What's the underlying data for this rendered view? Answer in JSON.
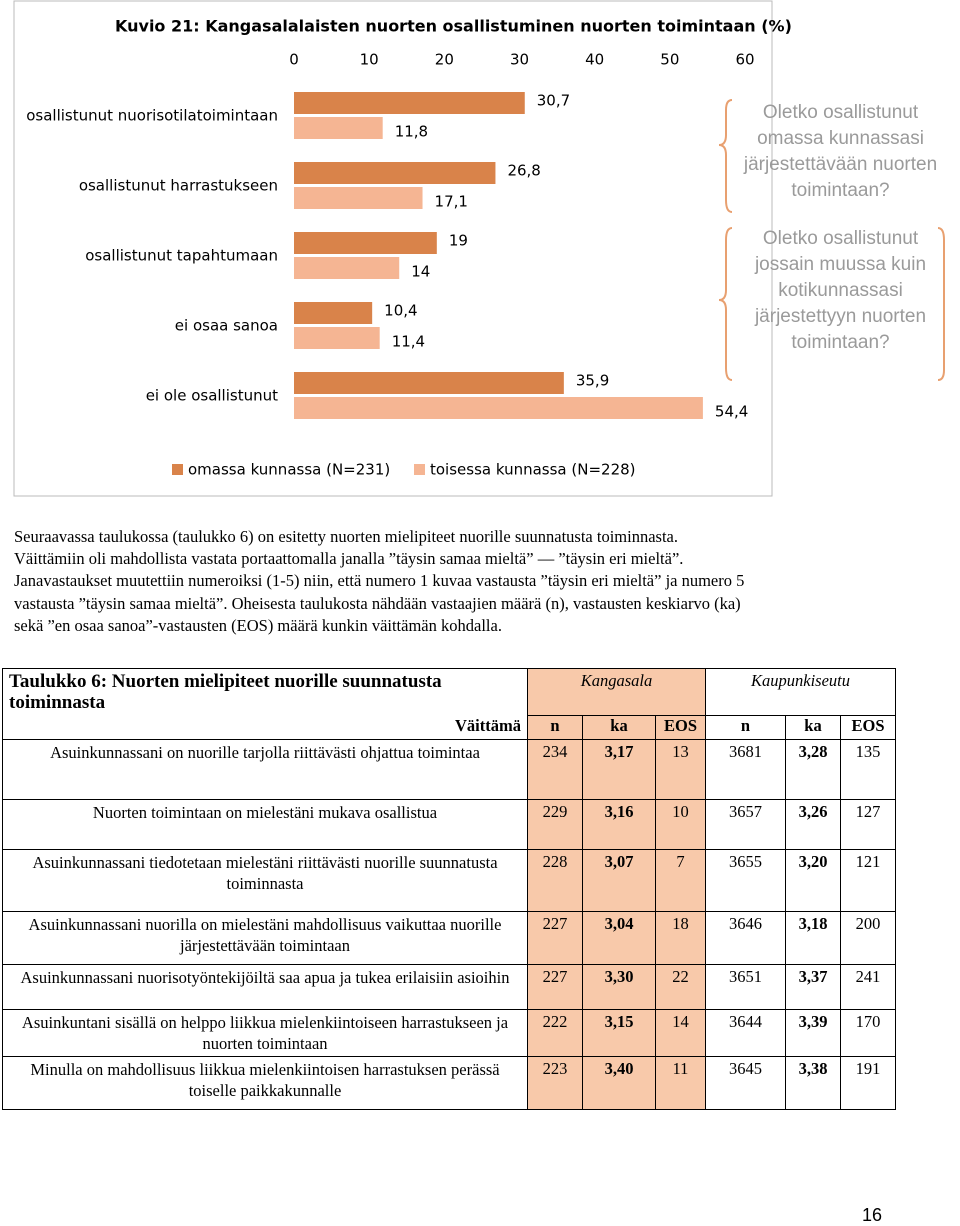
{
  "chart_data": {
    "type": "bar",
    "orientation": "horizontal",
    "title": "Kuvio 21: Kangasalalaisten nuorten osallistuminen nuorten toimintaan (%)",
    "categories": [
      "osallistunut nuorisotilatoimintaan",
      "osallistunut harrastukseen",
      "osallistunut tapahtumaan",
      "ei osaa sanoa",
      "ei ole osallistunut"
    ],
    "series": [
      {
        "name": "omassa kunnassa (N=231)",
        "color": "#d9834a",
        "values": [
          30.7,
          26.8,
          19,
          10.4,
          35.9
        ],
        "value_labels": [
          "30,7",
          "26,8",
          "19",
          "10,4",
          "35,9"
        ]
      },
      {
        "name": "toisessa kunnassa (N=228)",
        "color": "#f5b593",
        "values": [
          11.8,
          17.1,
          14,
          11.4,
          54.4
        ],
        "value_labels": [
          "11,8",
          "17,1",
          "14",
          "11,4",
          "54,4"
        ]
      }
    ],
    "xlim": [
      0,
      60
    ],
    "xticks": [
      0,
      10,
      20,
      30,
      40,
      50,
      60
    ],
    "legend": "bottom",
    "annotations": [
      "Oletko osallistunut omassa kunnassasi järjestettävään nuorten toimintaan?",
      "Oletko osallistunut jossain muussa kuin kotikunnassasi järjestettyyn nuorten toimintaan?"
    ]
  },
  "paragraph": [
    "Seuraavassa taulukossa (taulukko 6) on esitetty nuorten mielipiteet nuorille suunnatusta toiminnasta.",
    "Väittämiin oli mahdollista vastata portaattomalla janalla ”täysin samaa mieltä” — ”täysin eri mieltä”.",
    "Janavastaukset muutettiin numeroiksi (1-5) niin, että numero 1 kuvaa vastausta ”täysin eri mieltä” ja numero 5",
    "vastausta ”täysin samaa mieltä”. Oheisesta taulukosta nähdään vastaajien määrä (n), vastausten keskiarvo (ka)",
    "sekä ”en osaa sanoa”-vastausten (EOS) määrä kunkin väittämän kohdalla."
  ],
  "table": {
    "title": "Taulukko 6: Nuorten mielipiteet nuorille suunnatusta toiminnasta",
    "groups": [
      "Kangasala",
      "Kaupunkiseutu"
    ],
    "columns": [
      "Väittämä",
      "n",
      "ka",
      "EOS",
      "n",
      "ka",
      "EOS"
    ],
    "rows": [
      {
        "statement": "Asuinkunnassani on nuorille tarjolla riittävästi ohjattua toimintaa",
        "values": [
          "234",
          "3,17",
          "13",
          "3681",
          "3,28",
          "135"
        ]
      },
      {
        "statement": "Nuorten toimintaan on mielestäni mukava osallistua",
        "values": [
          "229",
          "3,16",
          "10",
          "3657",
          "3,26",
          "127"
        ]
      },
      {
        "statement": "Asuinkunnassani tiedotetaan mielestäni riittävästi nuorille suunnatusta toiminnasta",
        "values": [
          "228",
          "3,07",
          "7",
          "3655",
          "3,20",
          "121"
        ]
      },
      {
        "statement": "Asuinkunnassani nuorilla on mielestäni mahdollisuus vaikuttaa nuorille järjestettävään toimintaan",
        "values": [
          "227",
          "3,04",
          "18",
          "3646",
          "3,18",
          "200"
        ]
      },
      {
        "statement": "Asuinkunnassani nuorisotyöntekijöiltä saa apua ja tukea erilaisiin asioihin",
        "values": [
          "227",
          "3,30",
          "22",
          "3651",
          "3,37",
          "241"
        ]
      },
      {
        "statement": "Asuinkuntani sisällä on helppo liikkua mielenkiintoiseen harrastukseen ja nuorten toimintaan",
        "values": [
          "222",
          "3,15",
          "14",
          "3644",
          "3,39",
          "170"
        ]
      },
      {
        "statement": "Minulla on mahdollisuus liikkua mielenkiintoisen harrastuksen perässä toiselle paikkakunnalle",
        "values": [
          "223",
          "3,40",
          "11",
          "3645",
          "3,38",
          "191"
        ]
      }
    ]
  },
  "page_number": "16"
}
